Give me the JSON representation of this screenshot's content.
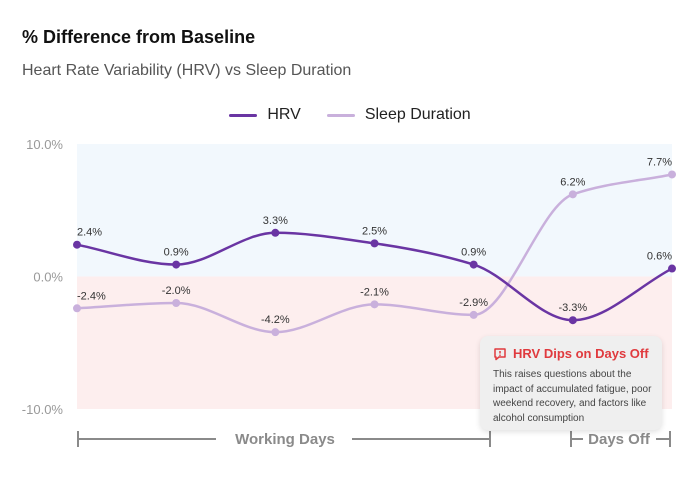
{
  "title": "% Difference from Baseline",
  "subtitle": "Heart Rate Variability (HRV) vs Sleep Duration",
  "colors": {
    "hrv": "#6a35a3",
    "sleep": "#c9b0dc",
    "positive_band": "#f2f8fd",
    "negative_band": "#fdeeee",
    "axis_text": "#999999",
    "bracket": "#8a8a8a",
    "alert": "#e03a3e"
  },
  "chart_data": {
    "type": "line",
    "title": "% Difference from Baseline",
    "subtitle": "Heart Rate Variability (HRV) vs Sleep Duration",
    "x": [
      1,
      2,
      3,
      4,
      5,
      6,
      7
    ],
    "ylim": [
      -10,
      10
    ],
    "yticks": [
      10,
      0,
      -10
    ],
    "ytick_labels": [
      "10.0%",
      "0.0%",
      "-10.0%"
    ],
    "legend_position": "top-center",
    "series": [
      {
        "name": "HRV",
        "values": [
          2.4,
          0.9,
          3.3,
          2.5,
          0.9,
          -3.3,
          0.6
        ],
        "labels": [
          "2.4%",
          "0.9%",
          "3.3%",
          "2.5%",
          "0.9%",
          "-3.3%",
          "0.6%"
        ]
      },
      {
        "name": "Sleep Duration",
        "values": [
          -2.4,
          -2.0,
          -4.2,
          -2.1,
          -2.9,
          6.2,
          7.7
        ],
        "labels": [
          "-2.4%",
          "-2.0%",
          "-4.2%",
          "-2.1%",
          "-2.9%",
          "6.2%",
          "7.7%"
        ]
      }
    ],
    "groups": [
      {
        "label": "Working Days",
        "from": 1,
        "to": 5
      },
      {
        "label": "Days Off",
        "from": 6,
        "to": 7
      }
    ]
  },
  "annotation": {
    "icon": "alert-message-icon",
    "title": "HRV Dips on Days Off",
    "body": "This raises questions about the impact of accumulated fatigue, poor weekend recovery, and factors like alcohol consumption"
  }
}
